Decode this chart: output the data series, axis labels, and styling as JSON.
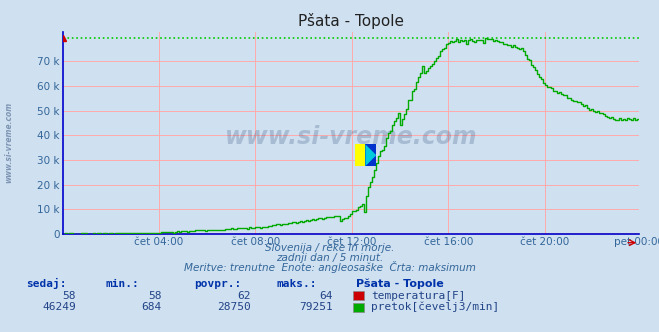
{
  "title": "Pšata - Topole",
  "bg_color": "#cfe0f0",
  "plot_bg_color": "#cfe0f0",
  "grid_color": "#ffaaaa",
  "x_labels": [
    "čet 04:00",
    "čet 08:00",
    "čet 12:00",
    "čet 16:00",
    "čet 20:00",
    "pet 00:00"
  ],
  "y_ticks": [
    0,
    10000,
    20000,
    30000,
    40000,
    50000,
    60000,
    70000
  ],
  "y_tick_labels": [
    "0",
    "10 k",
    "20 k",
    "30 k",
    "40 k",
    "50 k",
    "60 k",
    "70 k"
  ],
  "ylim": [
    0,
    82000
  ],
  "xlim": [
    0,
    287
  ],
  "temp_color": "#cc0000",
  "flow_color": "#00aa00",
  "max_line_color": "#00cc00",
  "max_value": 79251,
  "axis_color": "#0000cc",
  "subtitle1": "Slovenija / reke in morje.",
  "subtitle2": "zadnji dan / 5 minut.",
  "subtitle3": "Meritve: trenutne  Enote: angleosaške  Črta: maksimum",
  "table_headers": [
    "sedaj:",
    "min.:",
    "povpr.:",
    "maks.:"
  ],
  "table_row1": [
    "58",
    "58",
    "62",
    "64"
  ],
  "table_row2": [
    "46249",
    "684",
    "28750",
    "79251"
  ],
  "label_temp": "temperatura[F]",
  "label_flow": "pretok[čevelj3/min]",
  "station": "Pšata - Topole",
  "watermark": "www.si-vreme.com",
  "watermark_color": "#1a3a6a",
  "side_watermark": "www.si-vreme.com",
  "text_color_blue": "#336699",
  "text_color_dark": "#0033aa",
  "text_color_val": "#224488"
}
